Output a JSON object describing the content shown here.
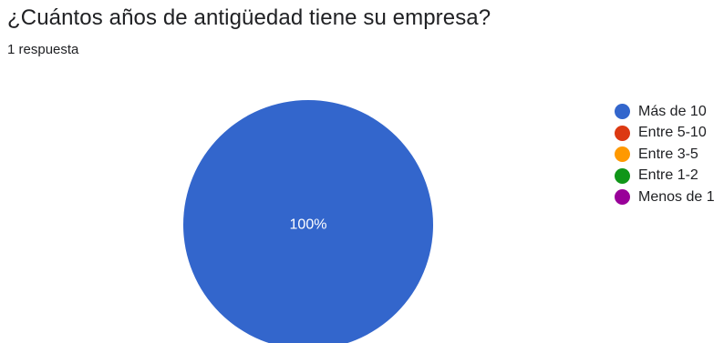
{
  "header": {
    "question": "¿Cuántos años de antigüedad tiene su empresa?",
    "responses": "1 respuesta"
  },
  "chart_data": {
    "type": "pie",
    "title": "",
    "categories": [
      "Más de 10",
      "Entre 5-10",
      "Entre 3-5",
      "Entre 1-2",
      "Menos de 1"
    ],
    "values": [
      100,
      0,
      0,
      0,
      0
    ],
    "unit": "%",
    "colors": [
      "#3366cc",
      "#dc3912",
      "#ff9900",
      "#109618",
      "#990099"
    ],
    "slice_labels": [
      "100%"
    ],
    "legend_position": "right"
  }
}
